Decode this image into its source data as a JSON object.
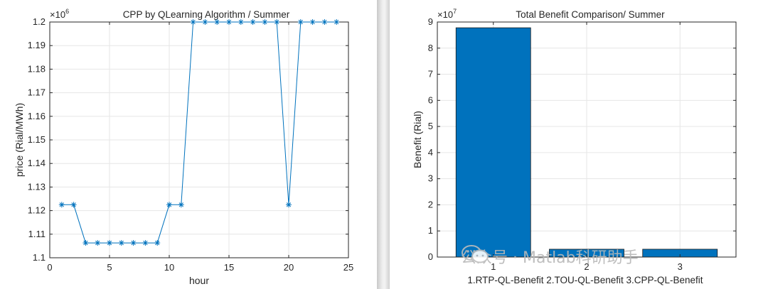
{
  "chart_data": [
    {
      "type": "line",
      "title": "CPP by QLearning Algorithm / Summer",
      "xlabel": "hour",
      "ylabel": "price (Rial/MWh)",
      "exponent_label": "×10",
      "exponent_power": "6",
      "xlim": [
        0,
        25
      ],
      "ylim": [
        1.1,
        1.2
      ],
      "xticks": [
        0,
        5,
        10,
        15,
        20,
        25
      ],
      "yticks": [
        1.1,
        1.11,
        1.12,
        1.13,
        1.14,
        1.15,
        1.16,
        1.17,
        1.18,
        1.19,
        1.2
      ],
      "grid": true,
      "marker": "*",
      "color": "#0072BD",
      "series": [
        {
          "name": "CPP",
          "x": [
            1,
            2,
            3,
            4,
            5,
            6,
            7,
            8,
            9,
            10,
            11,
            12,
            13,
            14,
            15,
            16,
            17,
            18,
            19,
            20,
            21,
            22,
            23,
            24
          ],
          "y": [
            1.1225,
            1.1225,
            1.1063,
            1.1063,
            1.1063,
            1.1063,
            1.1063,
            1.1063,
            1.1063,
            1.1225,
            1.1225,
            1.2,
            1.2,
            1.2,
            1.2,
            1.2,
            1.2,
            1.2,
            1.2,
            1.1225,
            1.2,
            1.2,
            1.2,
            1.2
          ]
        }
      ]
    },
    {
      "type": "bar",
      "title": "Total Benefit Comparison/ Summer",
      "xlabel": "1.RTP-QL-Benefit 2.TOU-QL-Benefit 3.CPP-QL-Benefit",
      "ylabel": "Benefit (Rial)",
      "exponent_label": "×10",
      "exponent_power": "7",
      "categories": [
        "1",
        "2",
        "3"
      ],
      "values": [
        8.78,
        0.3,
        0.3
      ],
      "ylim": [
        0,
        9
      ],
      "yticks": [
        0,
        1,
        2,
        3,
        4,
        5,
        6,
        7,
        8,
        9
      ],
      "grid": true,
      "color": "#0072BD"
    }
  ],
  "watermark": {
    "text": "公众号 · Matlab科研助手",
    "logo_icon": "wechat-icon"
  }
}
